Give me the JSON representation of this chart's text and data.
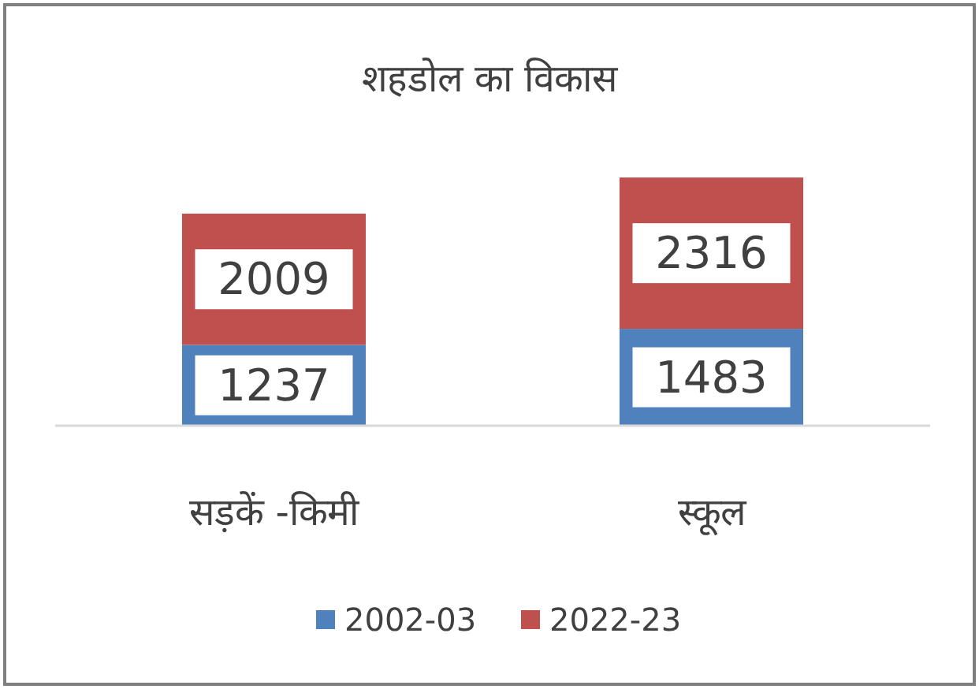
{
  "chart_data": {
    "type": "bar",
    "stacked": true,
    "title": "शहडोल का विकास",
    "categories": [
      "सड़कें -किमी",
      "स्कूल"
    ],
    "series": [
      {
        "name": "2002-03",
        "color": "#4f81bd",
        "values": [
          1237,
          1483
        ]
      },
      {
        "name": "2022-23",
        "color": "#c0504d",
        "values": [
          2009,
          2316
        ]
      }
    ],
    "data_labels": true,
    "legend": "bottom"
  }
}
